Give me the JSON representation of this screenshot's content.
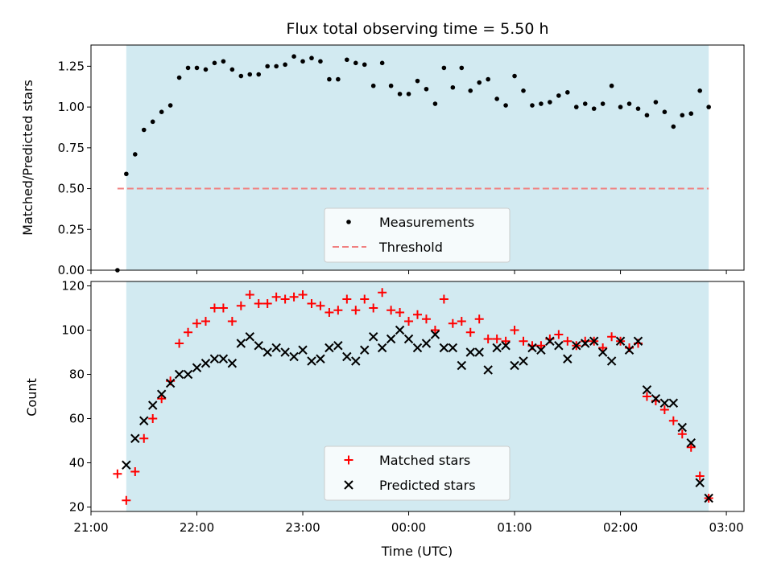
{
  "chart_data": [
    {
      "type": "scatter",
      "title": "Flux total observing time = 5.50 h",
      "xlabel": "",
      "ylabel": "Matched/Predicted stars",
      "xlim": [
        "21:00",
        "03:10"
      ],
      "ylim": [
        0,
        1.38
      ],
      "yticks": [
        "0.00",
        "0.25",
        "0.50",
        "0.75",
        "1.00",
        "1.25"
      ],
      "shaded_interval": [
        "21:20",
        "02:50"
      ],
      "shade_color": "#add8e6",
      "grid": false,
      "legend_position": "lower-center",
      "series": [
        {
          "name": "Measurements",
          "marker": "dot",
          "color": "#000000",
          "x": [
            "21:15",
            "21:20",
            "21:25",
            "21:30",
            "21:35",
            "21:40",
            "21:45",
            "21:50",
            "21:55",
            "22:00",
            "22:05",
            "22:10",
            "22:15",
            "22:20",
            "22:25",
            "22:30",
            "22:35",
            "22:40",
            "22:45",
            "22:50",
            "22:55",
            "23:00",
            "23:05",
            "23:10",
            "23:15",
            "23:20",
            "23:25",
            "23:30",
            "23:35",
            "23:40",
            "23:45",
            "23:50",
            "23:55",
            "00:00",
            "00:05",
            "00:10",
            "00:15",
            "00:20",
            "00:25",
            "00:30",
            "00:35",
            "00:40",
            "00:45",
            "00:50",
            "00:55",
            "01:00",
            "01:05",
            "01:10",
            "01:15",
            "01:20",
            "01:25",
            "01:30",
            "01:35",
            "01:40",
            "01:45",
            "01:50",
            "01:55",
            "02:00",
            "02:05",
            "02:10",
            "02:15",
            "02:20",
            "02:25",
            "02:30",
            "02:35",
            "02:40",
            "02:45",
            "02:50"
          ],
          "y": [
            0.0,
            0.59,
            0.71,
            0.86,
            0.91,
            0.97,
            1.01,
            1.18,
            1.24,
            1.24,
            1.23,
            1.27,
            1.28,
            1.23,
            1.19,
            1.2,
            1.2,
            1.25,
            1.25,
            1.26,
            1.31,
            1.28,
            1.3,
            1.28,
            1.17,
            1.17,
            1.29,
            1.27,
            1.26,
            1.13,
            1.27,
            1.13,
            1.08,
            1.08,
            1.16,
            1.11,
            1.02,
            1.24,
            1.12,
            1.24,
            1.1,
            1.15,
            1.17,
            1.05,
            1.01,
            1.19,
            1.1,
            1.01,
            1.02,
            1.03,
            1.07,
            1.09,
            1.0,
            1.02,
            0.99,
            1.02,
            1.13,
            1.0,
            1.02,
            0.99,
            0.95,
            1.03,
            0.97,
            0.88,
            0.95,
            0.96,
            1.1,
            1.0
          ]
        },
        {
          "name": "Threshold",
          "marker": "dashed-line",
          "color": "#f08080",
          "x": [
            "21:15",
            "02:50"
          ],
          "y": [
            0.5,
            0.5
          ]
        }
      ]
    },
    {
      "type": "scatter",
      "title": "",
      "xlabel": "Time (UTC)",
      "ylabel": "Count",
      "xlim": [
        "21:00",
        "03:10"
      ],
      "xticks": [
        "21:00",
        "22:00",
        "23:00",
        "00:00",
        "01:00",
        "02:00",
        "03:00"
      ],
      "ylim": [
        18,
        122
      ],
      "yticks": [
        "20",
        "40",
        "60",
        "80",
        "100",
        "120"
      ],
      "shaded_interval": [
        "21:20",
        "02:50"
      ],
      "shade_color": "#add8e6",
      "grid": false,
      "legend_position": "lower-center",
      "series": [
        {
          "name": "Matched stars",
          "marker": "plus",
          "color": "#ff0000",
          "x": [
            "21:15",
            "21:20",
            "21:25",
            "21:30",
            "21:35",
            "21:40",
            "21:45",
            "21:50",
            "21:55",
            "22:00",
            "22:05",
            "22:10",
            "22:15",
            "22:20",
            "22:25",
            "22:30",
            "22:35",
            "22:40",
            "22:45",
            "22:50",
            "22:55",
            "23:00",
            "23:05",
            "23:10",
            "23:15",
            "23:20",
            "23:25",
            "23:30",
            "23:35",
            "23:40",
            "23:45",
            "23:50",
            "23:55",
            "00:00",
            "00:05",
            "00:10",
            "00:15",
            "00:20",
            "00:25",
            "00:30",
            "00:35",
            "00:40",
            "00:45",
            "00:50",
            "00:55",
            "01:00",
            "01:05",
            "01:10",
            "01:15",
            "01:20",
            "01:25",
            "01:30",
            "01:35",
            "01:40",
            "01:45",
            "01:50",
            "01:55",
            "02:00",
            "02:05",
            "02:10",
            "02:15",
            "02:20",
            "02:25",
            "02:30",
            "02:35",
            "02:40",
            "02:45",
            "02:50"
          ],
          "y": [
            35,
            23,
            36,
            51,
            60,
            69,
            77,
            94,
            99,
            103,
            104,
            110,
            110,
            104,
            111,
            116,
            112,
            112,
            115,
            114,
            115,
            116,
            112,
            111,
            108,
            109,
            114,
            109,
            114,
            110,
            117,
            109,
            108,
            104,
            107,
            105,
            100,
            114,
            103,
            104,
            99,
            105,
            96,
            96,
            95,
            100,
            95,
            93,
            93,
            96,
            98,
            95,
            93,
            95,
            95,
            92,
            97,
            95,
            92,
            94,
            70,
            68,
            64,
            59,
            53,
            47,
            34,
            24
          ]
        },
        {
          "name": "Predicted stars",
          "marker": "x",
          "color": "#000000",
          "x": [
            "21:20",
            "21:25",
            "21:30",
            "21:35",
            "21:40",
            "21:45",
            "21:50",
            "21:55",
            "22:00",
            "22:05",
            "22:10",
            "22:15",
            "22:20",
            "22:25",
            "22:30",
            "22:35",
            "22:40",
            "22:45",
            "22:50",
            "22:55",
            "23:00",
            "23:05",
            "23:10",
            "23:15",
            "23:20",
            "23:25",
            "23:30",
            "23:35",
            "23:40",
            "23:45",
            "23:50",
            "23:55",
            "00:00",
            "00:05",
            "00:10",
            "00:15",
            "00:20",
            "00:25",
            "00:30",
            "00:35",
            "00:40",
            "00:45",
            "00:50",
            "00:55",
            "01:00",
            "01:05",
            "01:10",
            "01:15",
            "01:20",
            "01:25",
            "01:30",
            "01:35",
            "01:40",
            "01:45",
            "01:50",
            "01:55",
            "02:00",
            "02:05",
            "02:10",
            "02:15",
            "02:20",
            "02:25",
            "02:30",
            "02:35",
            "02:40",
            "02:45",
            "02:50"
          ],
          "y": [
            39,
            51,
            59,
            66,
            71,
            76,
            80,
            80,
            83,
            85,
            87,
            87,
            85,
            94,
            97,
            93,
            90,
            92,
            90,
            88,
            91,
            86,
            87,
            92,
            93,
            88,
            86,
            91,
            97,
            92,
            96,
            100,
            96,
            92,
            94,
            98,
            92,
            92,
            84,
            90,
            90,
            82,
            92,
            93,
            84,
            86,
            92,
            91,
            95,
            93,
            87,
            93,
            94,
            95,
            90,
            86,
            95,
            91,
            95,
            73,
            69,
            67,
            67,
            56,
            49,
            31,
            24
          ]
        }
      ]
    }
  ]
}
